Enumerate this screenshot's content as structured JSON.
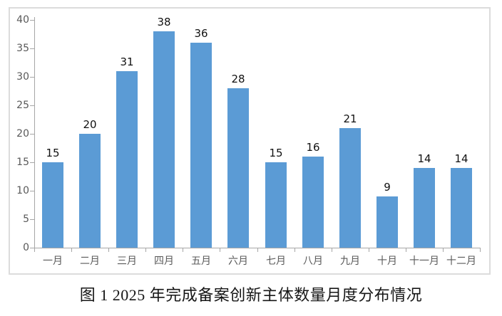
{
  "page": {
    "background_color": "#ffffff"
  },
  "chart_data": {
    "type": "bar",
    "title": "",
    "caption": "图 1 2025 年完成备案创新主体数量月度分布情况",
    "categories": [
      "一月",
      "二月",
      "三月",
      "四月",
      "五月",
      "六月",
      "七月",
      "八月",
      "九月",
      "十月",
      "十一月",
      "十二月"
    ],
    "values": [
      15,
      20,
      31,
      38,
      36,
      28,
      15,
      16,
      21,
      9,
      14,
      14
    ],
    "xlabel": "",
    "ylabel": "",
    "ylim": [
      0,
      40
    ],
    "yticks": [
      0,
      5,
      10,
      15,
      20,
      25,
      30,
      35,
      40
    ],
    "grid": false,
    "legend": null,
    "bar_color": "#5B9BD5",
    "axis_color": "#a6a6a6",
    "tick_label_color": "#595959",
    "value_label_color": "#111111",
    "frame_border_color": "#dcdcdc"
  }
}
